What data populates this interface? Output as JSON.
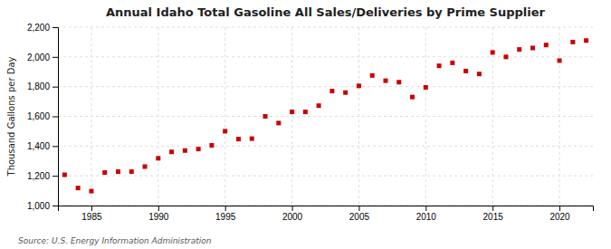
{
  "chart_data": {
    "type": "scatter",
    "title": "Annual Idaho Total Gasoline All Sales/Deliveries by Prime Supplier",
    "ylabel": "Thousand Gallons per Day",
    "annotations": [
      "Source: U.S. Energy Information Administration"
    ],
    "x": [
      1983,
      1984,
      1985,
      1986,
      1987,
      1988,
      1989,
      1990,
      1991,
      1992,
      1993,
      1994,
      1995,
      1996,
      1997,
      1998,
      1999,
      2000,
      2001,
      2002,
      2003,
      2004,
      2005,
      2006,
      2007,
      2008,
      2009,
      2010,
      2011,
      2012,
      2013,
      2014,
      2015,
      2016,
      2017,
      2018,
      2019,
      2020,
      2021,
      2022
    ],
    "values": [
      1207,
      1118,
      1097,
      1222,
      1228,
      1228,
      1262,
      1318,
      1361,
      1370,
      1380,
      1405,
      1500,
      1447,
      1450,
      1600,
      1555,
      1630,
      1630,
      1672,
      1770,
      1760,
      1805,
      1875,
      1840,
      1830,
      1730,
      1795,
      1940,
      1960,
      1905,
      1885,
      2030,
      2000,
      2050,
      2060,
      2080,
      1975,
      2100,
      2110
    ],
    "color": "#cc0000",
    "marker": "square",
    "xlim": [
      1982.5,
      2022.5
    ],
    "xticks": [
      1985,
      1990,
      1995,
      2000,
      2005,
      2010,
      2015,
      2020
    ],
    "ylim": [
      1000,
      2200
    ],
    "yticks": [
      {
        "value": 1000,
        "label": "1,000"
      },
      {
        "value": 1200,
        "label": "1,200"
      },
      {
        "value": 1400,
        "label": "1,400"
      },
      {
        "value": 1600,
        "label": "1,600"
      },
      {
        "value": 1800,
        "label": "1,800"
      },
      {
        "value": 2000,
        "label": "2,000"
      },
      {
        "value": 2200,
        "label": "2,200"
      }
    ],
    "grid": true
  }
}
